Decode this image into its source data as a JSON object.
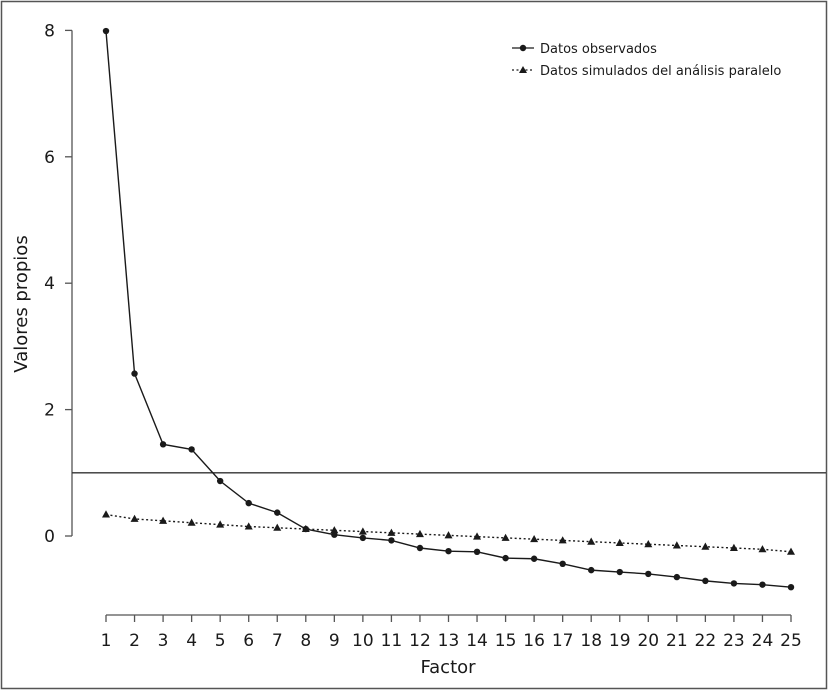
{
  "chart_data": {
    "type": "line",
    "title": "",
    "xlabel": "Factor",
    "ylabel": "Valores propios",
    "x": [
      1,
      2,
      3,
      4,
      5,
      6,
      7,
      8,
      9,
      10,
      11,
      12,
      13,
      14,
      15,
      16,
      17,
      18,
      19,
      20,
      21,
      22,
      23,
      24,
      25
    ],
    "xlim": [
      1,
      25
    ],
    "ylim": [
      -0.8,
      8
    ],
    "yticks": [
      0,
      2,
      4,
      6,
      8
    ],
    "reference_line": 1,
    "grid": false,
    "legend_position": "top-right",
    "series": [
      {
        "name": "Datos observados",
        "marker": "circle",
        "line_style": "solid",
        "values": [
          7.99,
          2.57,
          1.45,
          1.37,
          0.87,
          0.52,
          0.37,
          0.11,
          0.02,
          -0.03,
          -0.07,
          -0.19,
          -0.24,
          -0.25,
          -0.35,
          -0.36,
          -0.44,
          -0.54,
          -0.57,
          -0.6,
          -0.65,
          -0.71,
          -0.75,
          -0.77,
          -0.81
        ]
      },
      {
        "name": "Datos simulados del análisis paralelo",
        "marker": "triangle",
        "line_style": "dotted",
        "values": [
          0.34,
          0.27,
          0.24,
          0.21,
          0.18,
          0.15,
          0.13,
          0.11,
          0.09,
          0.07,
          0.05,
          0.03,
          0.01,
          -0.01,
          -0.03,
          -0.05,
          -0.07,
          -0.09,
          -0.11,
          -0.13,
          -0.15,
          -0.17,
          -0.19,
          -0.21,
          -0.25
        ]
      }
    ],
    "colors": {
      "line": "#1a1a1a",
      "frame": "#555555",
      "background": "#ffffff"
    }
  }
}
